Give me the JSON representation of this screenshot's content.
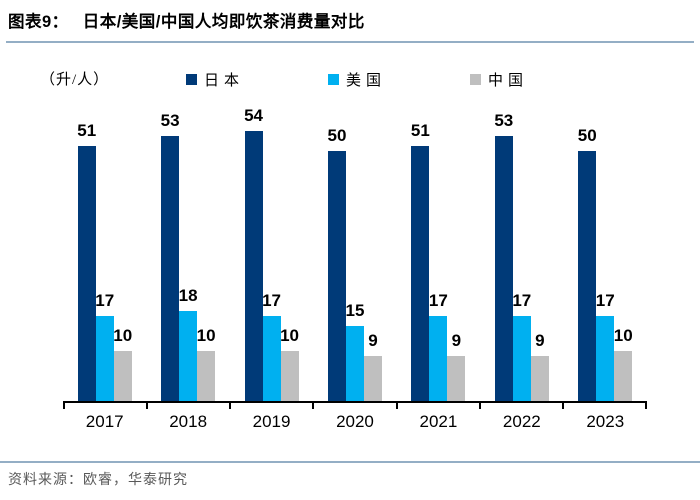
{
  "header": {
    "label": "图表9：",
    "title": "日本/美国/中国人均即饮茶消费量对比"
  },
  "chart_data": {
    "type": "bar",
    "title": "日本/美国/中国人均即饮茶消费量对比",
    "unit": "（升/人）",
    "categories": [
      "2017",
      "2018",
      "2019",
      "2020",
      "2021",
      "2022",
      "2023"
    ],
    "series": [
      {
        "name": "日本",
        "color": "#003a78",
        "values": [
          51,
          53,
          54,
          50,
          51,
          53,
          50
        ]
      },
      {
        "name": "美国",
        "color": "#00b0f0",
        "values": [
          17,
          18,
          17,
          15,
          17,
          17,
          17
        ]
      },
      {
        "name": "中国",
        "color": "#bfbfbf",
        "values": [
          10,
          10,
          10,
          9,
          9,
          9,
          10
        ]
      }
    ],
    "ylim": [
      0,
      60
    ],
    "grid": false,
    "legend_position": "top",
    "data_labels": true
  },
  "footer": {
    "source": "资料来源：欧睿，华泰研究"
  },
  "colors": {
    "japan": "#003a78",
    "usa": "#00b0f0",
    "china": "#bfbfbf",
    "rule": "#94aec5",
    "footer_text": "#595959"
  }
}
